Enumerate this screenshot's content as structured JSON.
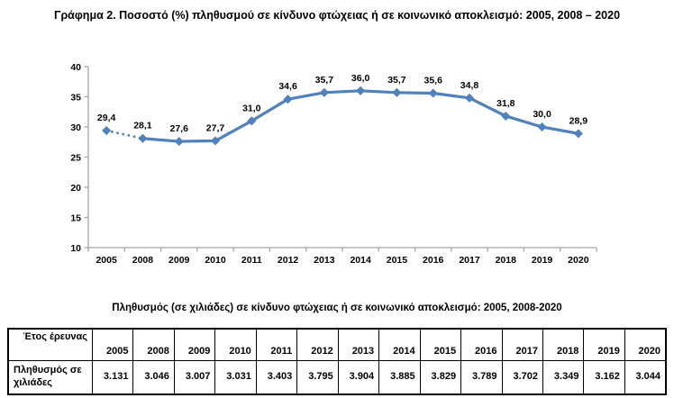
{
  "page": {
    "background": "#ffffff"
  },
  "chart_data": [
    {
      "type": "line",
      "title": "Γράφημα 2. Ποσοστό (%) πληθυσμού σε κίνδυνο φτώχειας ή σε κοινωνικό αποκλεισμό: 2005, 2008 – 2020",
      "categories": [
        "2005",
        "2008",
        "2009",
        "2010",
        "2011",
        "2012",
        "2013",
        "2014",
        "2015",
        "2016",
        "2017",
        "2018",
        "2019",
        "2020"
      ],
      "values": [
        29.4,
        28.1,
        27.6,
        27.7,
        31.0,
        34.6,
        35.7,
        36.0,
        35.7,
        35.6,
        34.8,
        31.8,
        30.0,
        28.9
      ],
      "ylim": [
        10,
        40
      ],
      "ytick_step": 5,
      "ytick_labels": [
        "10",
        "15",
        "20",
        "25",
        "30",
        "35",
        "40"
      ],
      "grid": false,
      "legend": "none",
      "marker": "diamond",
      "decimal_separator": ",",
      "dashed_segment_categories": [
        "2005",
        "2008"
      ],
      "line_color": "#4F81BD",
      "axis_color": "#A6A6A6",
      "label_color": "#000000"
    },
    {
      "type": "table",
      "title": "Πληθυσμός (σε χιλιάδες) σε κίνδυνο φτώχειας ή σε κοινωνικό αποκλεισμό: 2005, 2008-2020",
      "row_headers": [
        "Έτος έρευνας",
        "Πληθυσμός σε χιλιάδες"
      ],
      "columns": [
        "2005",
        "2008",
        "2009",
        "2010",
        "2011",
        "2012",
        "2013",
        "2014",
        "2015",
        "2016",
        "2017",
        "2018",
        "2019",
        "2020"
      ],
      "values": [
        "3.131",
        "3.046",
        "3.007",
        "3.031",
        "3.403",
        "3.795",
        "3.904",
        "3.885",
        "3.829",
        "3.789",
        "3.702",
        "3.349",
        "3.162",
        "3.044"
      ]
    }
  ]
}
